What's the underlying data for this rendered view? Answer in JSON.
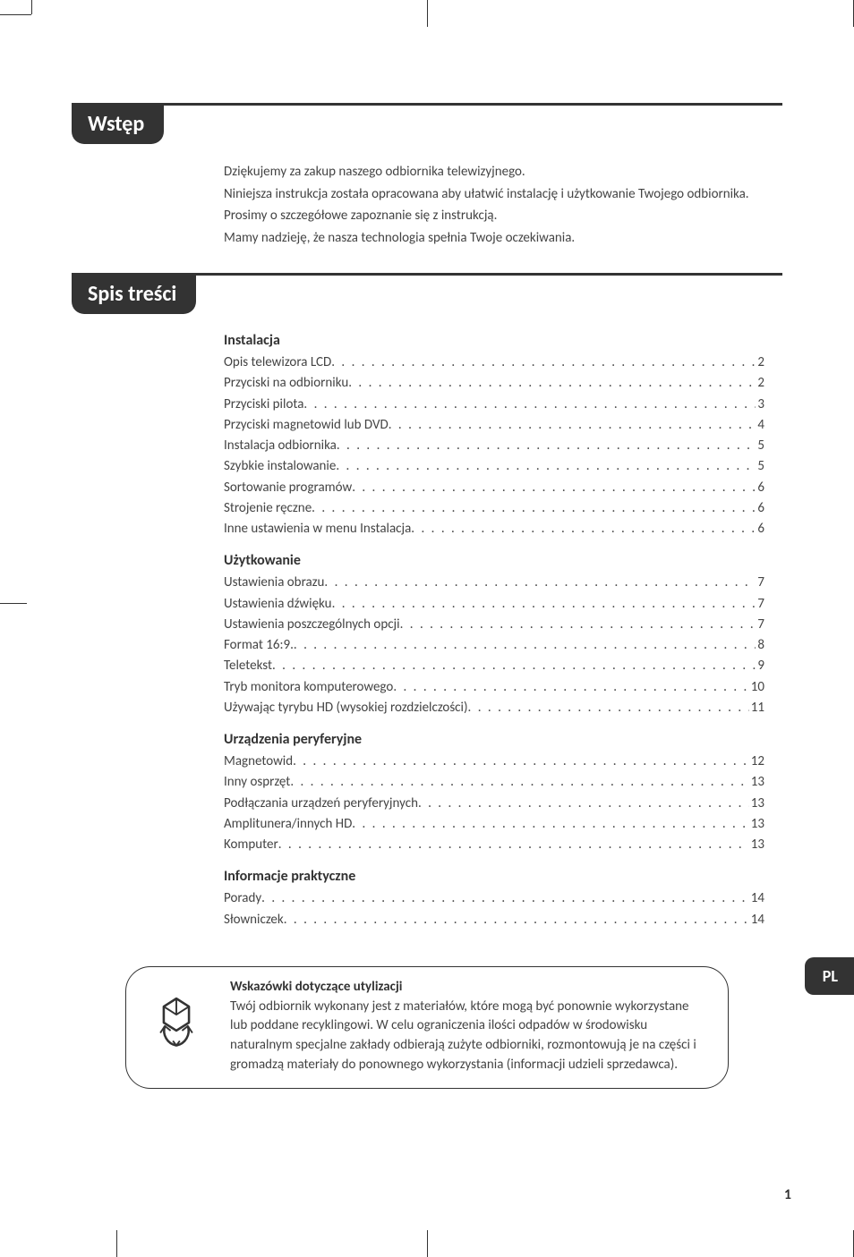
{
  "colors": {
    "heading_bg": "#333333",
    "heading_fg": "#ffffff",
    "text": "#444444",
    "page_bg": "#ffffff",
    "rule": "#333333"
  },
  "typography": {
    "heading_fontsize": 24,
    "body_fontsize": 15,
    "section_fontsize": 16
  },
  "headings": {
    "intro": "Wstęp",
    "toc": "Spis treści"
  },
  "intro": {
    "lines": [
      "Dziękujemy za zakup naszego odbiornika telewizyjnego.",
      "Niniejsza instrukcja została opracowana aby ułatwić instalację i użytkowanie Twojego odbiornika.",
      "Prosimy o szczegółowe zapoznanie się z instrukcją.",
      "Mamy nadzieję, że nasza technologia spełnia Twoje oczekiwania."
    ]
  },
  "toc": {
    "sections": [
      {
        "title": "Instalacja",
        "items": [
          {
            "label": "Opis telewizora LCD",
            "page": "2"
          },
          {
            "label": "Przyciski na odbiorniku",
            "page": "2"
          },
          {
            "label": "Przyciski pilota",
            "page": "3"
          },
          {
            "label": "Przyciski magnetowid lub DVD",
            "page": "4"
          },
          {
            "label": "Instalacja odbiornika",
            "page": "5"
          },
          {
            "label": "Szybkie instalowanie",
            "page": "5"
          },
          {
            "label": "Sortowanie programów",
            "page": "6"
          },
          {
            "label": "Strojenie ręczne",
            "page": "6"
          },
          {
            "label": "Inne ustawienia w menu Instalacja",
            "page": "6"
          }
        ]
      },
      {
        "title": "Użytkowanie",
        "items": [
          {
            "label": "Ustawienia obrazu",
            "page": "7"
          },
          {
            "label": "Ustawienia dźwięku",
            "page": "7"
          },
          {
            "label": "Ustawienia poszczególnych opcji",
            "page": "7"
          },
          {
            "label": "Format 16:9.",
            "page": "8"
          },
          {
            "label": "Teletekst",
            "page": "9"
          },
          {
            "label": "Tryb monitora komputerowego",
            "page": "10"
          },
          {
            "label": "Używając tyrybu HD (wysokiej rozdzielczości)",
            "page": "11"
          }
        ]
      },
      {
        "title": "Urządzenia peryferyjne",
        "items": [
          {
            "label": "Magnetowid",
            "page": "12"
          },
          {
            "label": "Inny osprzęt",
            "page": "13"
          },
          {
            "label": "Podłączania urządzeń peryferyjnych",
            "page": "13"
          },
          {
            "label": "Amplitunera/innych HD",
            "page": "13"
          },
          {
            "label": "Komputer",
            "page": "13"
          }
        ]
      },
      {
        "title": "Informacje praktyczne",
        "items": [
          {
            "label": "Porady",
            "page": "14"
          },
          {
            "label": "Słowniczek",
            "page": "14"
          }
        ]
      }
    ]
  },
  "infobox": {
    "title": "Wskazówki dotyczące utylizacji",
    "body": "Twój odbiornik wykonany jest z materiałów, które mogą być ponownie wykorzystane lub poddane recyklingowi. W celu ograniczenia ilości odpadów w środowisku naturalnym specjalne zakłady odbierają zużyte odbiorniki, rozmontowują je na części i gromadzą materiały do ponownego wykorzystania (informacji udzieli sprzedawca)."
  },
  "lang_badge": "PL",
  "page_number": "1"
}
